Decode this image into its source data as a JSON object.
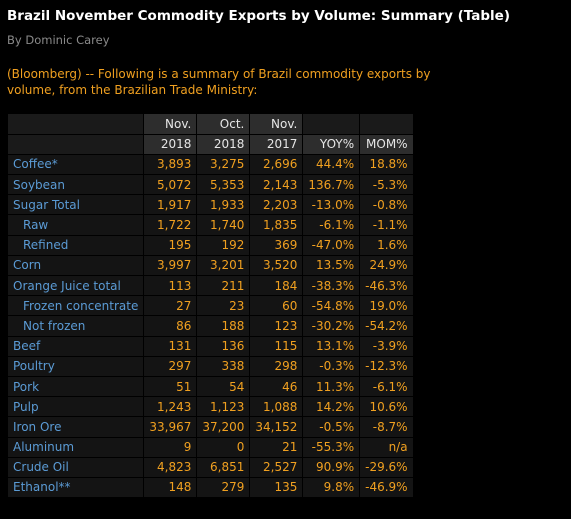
{
  "article": {
    "title": "Brazil November Commodity Exports by Volume: Summary (Table)",
    "byline": "By Dominic Carey",
    "intro": "(Bloomberg) --  Following is a summary of Brazil commodity exports by volume, from the Brazilian Trade Ministry:"
  },
  "table": {
    "header_row1": [
      "",
      "Nov.",
      "Oct.",
      "Nov.",
      "",
      ""
    ],
    "header_row2": [
      "",
      "2018",
      "2018",
      "2017",
      "YOY%",
      "MOM%"
    ],
    "rows": [
      {
        "label": "Coffee*",
        "sub": false,
        "values": [
          "3,893",
          "3,275",
          "2,696",
          "44.4%",
          "18.8%"
        ]
      },
      {
        "label": "Soybean",
        "sub": false,
        "values": [
          "5,072",
          "5,353",
          "2,143",
          "136.7%",
          "-5.3%"
        ]
      },
      {
        "label": "Sugar Total",
        "sub": false,
        "values": [
          "1,917",
          "1,933",
          "2,203",
          "-13.0%",
          "-0.8%"
        ]
      },
      {
        "label": "Raw",
        "sub": true,
        "values": [
          "1,722",
          "1,740",
          "1,835",
          "-6.1%",
          "-1.1%"
        ]
      },
      {
        "label": "Refined",
        "sub": true,
        "values": [
          "195",
          "192",
          "369",
          "-47.0%",
          "1.6%"
        ]
      },
      {
        "label": "Corn",
        "sub": false,
        "values": [
          "3,997",
          "3,201",
          "3,520",
          "13.5%",
          "24.9%"
        ]
      },
      {
        "label": "Orange Juice total",
        "sub": false,
        "values": [
          "113",
          "211",
          "184",
          "-38.3%",
          "-46.3%"
        ]
      },
      {
        "label": "Frozen concentrate",
        "sub": true,
        "values": [
          "27",
          "23",
          "60",
          "-54.8%",
          "19.0%"
        ]
      },
      {
        "label": "Not frozen",
        "sub": true,
        "values": [
          "86",
          "188",
          "123",
          "-30.2%",
          "-54.2%"
        ]
      },
      {
        "label": "Beef",
        "sub": false,
        "values": [
          "131",
          "136",
          "115",
          "13.1%",
          "-3.9%"
        ]
      },
      {
        "label": "Poultry",
        "sub": false,
        "values": [
          "297",
          "338",
          "298",
          "-0.3%",
          "-12.3%"
        ]
      },
      {
        "label": "Pork",
        "sub": false,
        "values": [
          "51",
          "54",
          "46",
          "11.3%",
          "-6.1%"
        ]
      },
      {
        "label": "Pulp",
        "sub": false,
        "values": [
          "1,243",
          "1,123",
          "1,088",
          "14.2%",
          "10.6%"
        ]
      },
      {
        "label": "Iron Ore",
        "sub": false,
        "values": [
          "33,967",
          "37,200",
          "34,152",
          "-0.5%",
          "-8.7%"
        ]
      },
      {
        "label": "Aluminum",
        "sub": false,
        "values": [
          "9",
          "0",
          "21",
          "-55.3%",
          "n/a"
        ]
      },
      {
        "label": "Crude Oil",
        "sub": false,
        "values": [
          "4,823",
          "6,851",
          "2,527",
          "90.9%",
          "-29.6%"
        ]
      },
      {
        "label": "Ethanol**",
        "sub": false,
        "values": [
          "148",
          "279",
          "135",
          "9.8%",
          "-46.9%"
        ]
      }
    ]
  },
  "colors": {
    "background": "#000000",
    "title": "#ffffff",
    "byline": "#8a8a8a",
    "accent_orange": "#f0a020",
    "label_blue": "#5b9bd5",
    "header_bg": "#2d2d2d",
    "cell_bg": "#141414"
  }
}
